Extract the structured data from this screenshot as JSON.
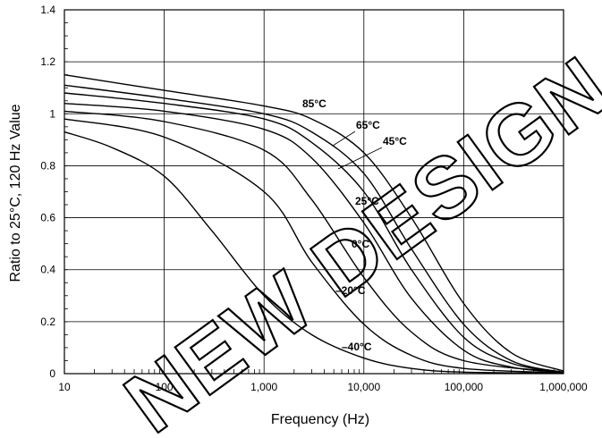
{
  "chart_data": {
    "type": "line",
    "title": "",
    "xlabel": "Frequency (Hz)",
    "ylabel": "Ratio to 25°C, 120 Hz Value",
    "x_scale": "log",
    "xlim": [
      10,
      1000000
    ],
    "ylim": [
      0,
      1.4
    ],
    "x_ticks": [
      10,
      100,
      1000,
      10000,
      100000,
      1000000
    ],
    "x_tick_labels": [
      "10",
      "100",
      "1,000",
      "10,000",
      "100,000",
      "1,000,000"
    ],
    "y_ticks": [
      0,
      0.2,
      0.4,
      0.6,
      0.8,
      1,
      1.2,
      1.4
    ],
    "y_tick_labels": [
      "0",
      "0.2",
      "0.4",
      "0.6",
      "0.8",
      "1",
      "1.2",
      "1.4"
    ],
    "grid": true,
    "legend": "none",
    "watermark": "NEW DESIGN",
    "series": [
      {
        "name": "85°C",
        "x": [
          10,
          100,
          1000,
          3000,
          10000,
          30000,
          100000,
          300000,
          1000000
        ],
        "y": [
          1.15,
          1.09,
          1.03,
          0.98,
          0.85,
          0.6,
          0.27,
          0.08,
          0.01
        ]
      },
      {
        "name": "65°C",
        "x": [
          10,
          100,
          1000,
          3000,
          10000,
          30000,
          100000,
          300000,
          1000000
        ],
        "y": [
          1.11,
          1.06,
          1.0,
          0.93,
          0.77,
          0.48,
          0.19,
          0.05,
          0.005
        ]
      },
      {
        "name": "45°C",
        "x": [
          10,
          100,
          1000,
          3000,
          10000,
          30000,
          100000,
          300000,
          1000000
        ],
        "y": [
          1.08,
          1.04,
          0.98,
          0.89,
          0.7,
          0.4,
          0.14,
          0.04,
          0.005
        ]
      },
      {
        "name": "25°C",
        "x": [
          10,
          100,
          1000,
          3000,
          10000,
          30000,
          100000,
          300000,
          1000000
        ],
        "y": [
          1.04,
          1.01,
          0.94,
          0.83,
          0.58,
          0.29,
          0.09,
          0.025,
          0.005
        ]
      },
      {
        "name": "0°C",
        "x": [
          10,
          100,
          1000,
          3000,
          10000,
          30000,
          100000,
          1000000
        ],
        "y": [
          1.01,
          0.97,
          0.86,
          0.67,
          0.37,
          0.16,
          0.05,
          0.005
        ]
      },
      {
        "name": "–20°C",
        "x": [
          10,
          100,
          1000,
          3000,
          10000,
          30000,
          100000,
          1000000
        ],
        "y": [
          0.98,
          0.91,
          0.7,
          0.43,
          0.19,
          0.07,
          0.02,
          0.003
        ]
      },
      {
        "name": "–40°C",
        "x": [
          10,
          30,
          100,
          300,
          1000,
          3000,
          10000,
          30000,
          100000,
          1000000
        ],
        "y": [
          0.93,
          0.87,
          0.76,
          0.55,
          0.3,
          0.15,
          0.06,
          0.02,
          0.006,
          0.002
        ]
      }
    ],
    "annotations": [
      {
        "text": "85°C",
        "series": "85°C"
      },
      {
        "text": "65°C",
        "series": "65°C"
      },
      {
        "text": "45°C",
        "series": "45°C"
      },
      {
        "text": "25°C",
        "series": "25°C"
      },
      {
        "text": "0°C",
        "series": "0°C"
      },
      {
        "text": "–20°C",
        "series": "–20°C"
      },
      {
        "text": "–40°C",
        "series": "–40°C"
      }
    ]
  }
}
